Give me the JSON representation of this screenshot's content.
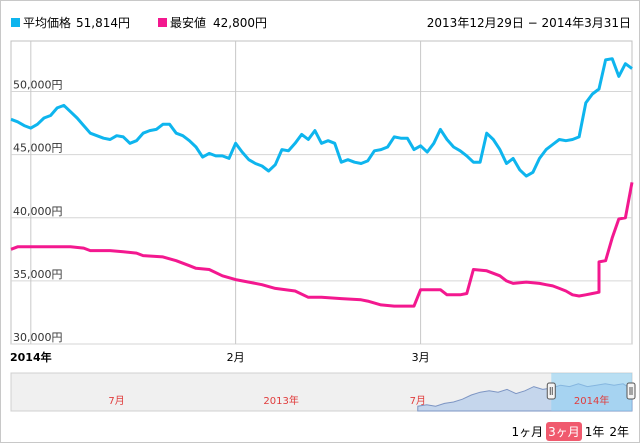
{
  "legend": {
    "avg": {
      "label": "平均価格",
      "value": "51,814円",
      "color": "#0eb5ee"
    },
    "min": {
      "label": "最安値",
      "value": "42,800円",
      "color": "#f3188f"
    }
  },
  "date_range": "2013年12月29日 − 2014年3月31日",
  "chart_data": {
    "type": "line",
    "x_unit": "day",
    "x_start": "2013-12-29",
    "x_end": "2014-03-31",
    "ylim": [
      30000,
      54000
    ],
    "y_ticks": [
      {
        "value": 30000,
        "label": "30,000円"
      },
      {
        "value": 35000,
        "label": "35,000円"
      },
      {
        "value": 40000,
        "label": "40,000円"
      },
      {
        "value": 45000,
        "label": "45,000円"
      },
      {
        "value": 50000,
        "label": "50,000円"
      }
    ],
    "x_ticks": [
      {
        "date": "2014-01-01",
        "label": "2014年",
        "bold": true
      },
      {
        "date": "2014-02-01",
        "label": "2月",
        "bold": false
      },
      {
        "date": "2014-03-01",
        "label": "3月",
        "bold": false
      }
    ],
    "grid": true,
    "series": [
      {
        "name": "平均価格",
        "color": "#0eb5ee",
        "points": [
          [
            "2013-12-29",
            47800
          ],
          [
            "2013-12-30",
            47600
          ],
          [
            "2013-12-31",
            47300
          ],
          [
            "2014-01-01",
            47100
          ],
          [
            "2014-01-02",
            47400
          ],
          [
            "2014-01-03",
            47900
          ],
          [
            "2014-01-04",
            48100
          ],
          [
            "2014-01-05",
            48700
          ],
          [
            "2014-01-06",
            48900
          ],
          [
            "2014-01-07",
            48400
          ],
          [
            "2014-01-08",
            47900
          ],
          [
            "2014-01-09",
            47300
          ],
          [
            "2014-01-10",
            46700
          ],
          [
            "2014-01-11",
            46500
          ],
          [
            "2014-01-12",
            46300
          ],
          [
            "2014-01-13",
            46200
          ],
          [
            "2014-01-14",
            46500
          ],
          [
            "2014-01-15",
            46400
          ],
          [
            "2014-01-16",
            45900
          ],
          [
            "2014-01-17",
            46100
          ],
          [
            "2014-01-18",
            46700
          ],
          [
            "2014-01-19",
            46900
          ],
          [
            "2014-01-20",
            47000
          ],
          [
            "2014-01-21",
            47400
          ],
          [
            "2014-01-22",
            47400
          ],
          [
            "2014-01-23",
            46700
          ],
          [
            "2014-01-24",
            46500
          ],
          [
            "2014-01-25",
            46100
          ],
          [
            "2014-01-26",
            45600
          ],
          [
            "2014-01-27",
            44800
          ],
          [
            "2014-01-28",
            45100
          ],
          [
            "2014-01-29",
            44900
          ],
          [
            "2014-01-30",
            44900
          ],
          [
            "2014-01-31",
            44700
          ],
          [
            "2014-02-01",
            45900
          ],
          [
            "2014-02-02",
            45200
          ],
          [
            "2014-02-03",
            44600
          ],
          [
            "2014-02-04",
            44300
          ],
          [
            "2014-02-05",
            44100
          ],
          [
            "2014-02-06",
            43700
          ],
          [
            "2014-02-07",
            44200
          ],
          [
            "2014-02-08",
            45400
          ],
          [
            "2014-02-09",
            45300
          ],
          [
            "2014-02-10",
            45900
          ],
          [
            "2014-02-11",
            46600
          ],
          [
            "2014-02-12",
            46200
          ],
          [
            "2014-02-13",
            46900
          ],
          [
            "2014-02-14",
            45900
          ],
          [
            "2014-02-15",
            46100
          ],
          [
            "2014-02-16",
            45900
          ],
          [
            "2014-02-17",
            44400
          ],
          [
            "2014-02-18",
            44600
          ],
          [
            "2014-02-19",
            44400
          ],
          [
            "2014-02-20",
            44300
          ],
          [
            "2014-02-21",
            44500
          ],
          [
            "2014-02-22",
            45300
          ],
          [
            "2014-02-23",
            45400
          ],
          [
            "2014-02-24",
            45600
          ],
          [
            "2014-02-25",
            46400
          ],
          [
            "2014-02-26",
            46300
          ],
          [
            "2014-02-27",
            46300
          ],
          [
            "2014-02-28",
            45400
          ],
          [
            "2014-03-01",
            45700
          ],
          [
            "2014-03-02",
            45200
          ],
          [
            "2014-03-03",
            45900
          ],
          [
            "2014-03-04",
            47000
          ],
          [
            "2014-03-05",
            46200
          ],
          [
            "2014-03-06",
            45600
          ],
          [
            "2014-03-07",
            45300
          ],
          [
            "2014-03-08",
            44900
          ],
          [
            "2014-03-09",
            44400
          ],
          [
            "2014-03-10",
            44400
          ],
          [
            "2014-03-11",
            46700
          ],
          [
            "2014-03-12",
            46200
          ],
          [
            "2014-03-13",
            45400
          ],
          [
            "2014-03-14",
            44300
          ],
          [
            "2014-03-15",
            44700
          ],
          [
            "2014-03-16",
            43800
          ],
          [
            "2014-03-17",
            43300
          ],
          [
            "2014-03-18",
            43600
          ],
          [
            "2014-03-19",
            44700
          ],
          [
            "2014-03-20",
            45400
          ],
          [
            "2014-03-21",
            45800
          ],
          [
            "2014-03-22",
            46200
          ],
          [
            "2014-03-23",
            46100
          ],
          [
            "2014-03-24",
            46200
          ],
          [
            "2014-03-25",
            46400
          ],
          [
            "2014-03-26",
            49100
          ],
          [
            "2014-03-27",
            49800
          ],
          [
            "2014-03-28",
            50200
          ],
          [
            "2014-03-29",
            52500
          ],
          [
            "2014-03-30",
            52600
          ],
          [
            "2014-03-31",
            51200
          ],
          [
            "2014-04-01",
            52200
          ],
          [
            "2014-04-02",
            51814
          ]
        ]
      },
      {
        "name": "最安値",
        "color": "#f3188f",
        "points": [
          [
            "2013-12-29",
            37500
          ],
          [
            "2013-12-30",
            37700
          ],
          [
            "2014-01-01",
            37700
          ],
          [
            "2014-01-07",
            37700
          ],
          [
            "2014-01-09",
            37600
          ],
          [
            "2014-01-10",
            37400
          ],
          [
            "2014-01-13",
            37400
          ],
          [
            "2014-01-15",
            37300
          ],
          [
            "2014-01-17",
            37200
          ],
          [
            "2014-01-18",
            37000
          ],
          [
            "2014-01-21",
            36900
          ],
          [
            "2014-01-23",
            36600
          ],
          [
            "2014-01-25",
            36200
          ],
          [
            "2014-01-26",
            36000
          ],
          [
            "2014-01-28",
            35900
          ],
          [
            "2014-01-30",
            35400
          ],
          [
            "2014-02-01",
            35100
          ],
          [
            "2014-02-03",
            34900
          ],
          [
            "2014-02-05",
            34700
          ],
          [
            "2014-02-07",
            34400
          ],
          [
            "2014-02-10",
            34200
          ],
          [
            "2014-02-12",
            33700
          ],
          [
            "2014-02-14",
            33700
          ],
          [
            "2014-02-17",
            33600
          ],
          [
            "2014-02-20",
            33500
          ],
          [
            "2014-02-21",
            33400
          ],
          [
            "2014-02-23",
            33100
          ],
          [
            "2014-02-25",
            33000
          ],
          [
            "2014-02-28",
            33000
          ],
          [
            "2014-03-01",
            34300
          ],
          [
            "2014-03-04",
            34300
          ],
          [
            "2014-03-05",
            33900
          ],
          [
            "2014-03-07",
            33900
          ],
          [
            "2014-03-08",
            34000
          ],
          [
            "2014-03-09",
            35900
          ],
          [
            "2014-03-11",
            35800
          ],
          [
            "2014-03-13",
            35400
          ],
          [
            "2014-03-14",
            35000
          ],
          [
            "2014-03-15",
            34800
          ],
          [
            "2014-03-17",
            34900
          ],
          [
            "2014-03-19",
            34800
          ],
          [
            "2014-03-20",
            34700
          ],
          [
            "2014-03-21",
            34600
          ],
          [
            "2014-03-22",
            34400
          ],
          [
            "2014-03-23",
            34200
          ],
          [
            "2014-03-24",
            33900
          ],
          [
            "2014-03-25",
            33800
          ],
          [
            "2014-03-26",
            33900
          ],
          [
            "2014-03-27",
            34000
          ],
          [
            "2014-03-28",
            34100
          ],
          [
            "2014-03-28",
            36500
          ],
          [
            "2014-03-29",
            36600
          ],
          [
            "2014-03-30",
            38400
          ],
          [
            "2014-03-31",
            39900
          ],
          [
            "2014-04-01",
            40000
          ],
          [
            "2014-04-02",
            42800
          ]
        ]
      }
    ]
  },
  "navigator": {
    "labels": [
      {
        "text": "7月",
        "pos": 0.17
      },
      {
        "text": "2013年",
        "pos": 0.435
      },
      {
        "text": "7月",
        "pos": 0.655
      },
      {
        "text": "2014年",
        "pos": 0.935
      }
    ],
    "window_start": 0.87,
    "window_end": 1.0,
    "trend": [
      0.9,
      0.85,
      0.9,
      0.8,
      0.75,
      0.65,
      0.5,
      0.4,
      0.35,
      0.4,
      0.3,
      0.45,
      0.35,
      0.2,
      0.3,
      0.25,
      0.15,
      0.2,
      0.1,
      0.2,
      0.15,
      0.1,
      0.15,
      0.1,
      0.3
    ]
  },
  "range_buttons": [
    {
      "label": "1ヶ月",
      "active": false
    },
    {
      "label": "3ヶ月",
      "active": true
    },
    {
      "label": "1年",
      "active": false
    },
    {
      "label": "2年",
      "active": false
    }
  ]
}
